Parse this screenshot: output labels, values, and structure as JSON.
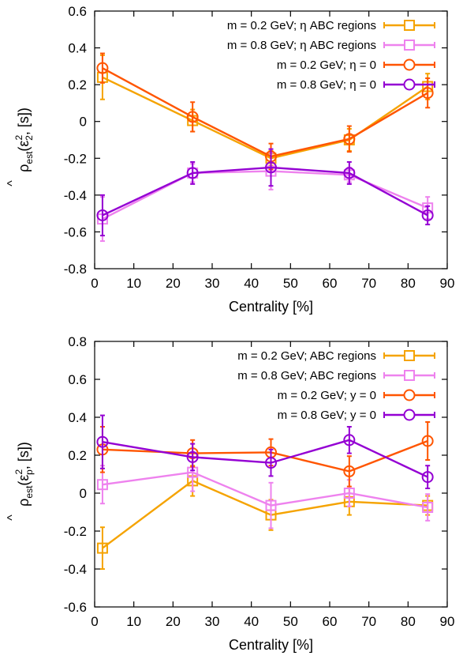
{
  "chart_data": [
    {
      "type": "line",
      "ylabel": "ρ̂_est(ε₂², [s])",
      "ylabel_parts": {
        "hat": "^",
        "main": "ρ",
        "sub": "est",
        "eps": "(ε",
        "sup": "2",
        "sub2": "2",
        "tail": ", [s])"
      },
      "xlabel": "Centrality [%]",
      "xlim": [
        0,
        90
      ],
      "ylim": [
        -0.8,
        0.6
      ],
      "xticks": [
        0,
        10,
        20,
        30,
        40,
        50,
        60,
        70,
        80,
        90
      ],
      "yticks": [
        -0.8,
        -0.6,
        -0.4,
        -0.2,
        0,
        0.2,
        0.4,
        0.6
      ],
      "ytick_labels": [
        "-0.8",
        "-0.6",
        "-0.4",
        "-0.2",
        "0",
        "0.2",
        "0.4",
        "0.6"
      ],
      "legend_position": "top-right",
      "grid": false,
      "x": [
        2,
        25,
        45,
        65,
        85
      ],
      "series": [
        {
          "name": "m = 0.2 GeV; η ABC regions",
          "color": "#f5a300",
          "marker": "square",
          "values": [
            0.24,
            0.005,
            -0.2,
            -0.1,
            0.19
          ],
          "errors": [
            0.12,
            0.06,
            0.04,
            0.06,
            0.07
          ]
        },
        {
          "name": "m = 0.8 GeV; η ABC regions",
          "color": "#ee82ee",
          "marker": "square",
          "values": [
            -0.53,
            -0.28,
            -0.27,
            -0.29,
            -0.47
          ],
          "errors": [
            0.12,
            0.05,
            0.1,
            0.04,
            0.06
          ]
        },
        {
          "name": "m = 0.2 GeV; η = 0",
          "color": "#ff5500",
          "marker": "circle",
          "values": [
            0.29,
            0.025,
            -0.19,
            -0.095,
            0.155
          ],
          "errors": [
            0.08,
            0.08,
            0.07,
            0.07,
            0.08
          ]
        },
        {
          "name": "m = 0.8 GeV; η = 0",
          "color": "#9400d3",
          "marker": "circle",
          "values": [
            -0.51,
            -0.28,
            -0.25,
            -0.28,
            -0.51
          ],
          "errors": [
            0.11,
            0.06,
            0.1,
            0.06,
            0.05
          ]
        }
      ]
    },
    {
      "type": "line",
      "ylabel": "ρ̂_est(ε_p², [s])",
      "ylabel_parts": {
        "hat": "^",
        "main": "ρ",
        "sub": "est",
        "eps": "(ε",
        "sup": "2",
        "sub2": "p",
        "tail": ", [s])"
      },
      "xlabel": "Centrality [%]",
      "xlim": [
        0,
        90
      ],
      "ylim": [
        -0.6,
        0.8
      ],
      "xticks": [
        0,
        10,
        20,
        30,
        40,
        50,
        60,
        70,
        80,
        90
      ],
      "yticks": [
        -0.6,
        -0.4,
        -0.2,
        0,
        0.2,
        0.4,
        0.6,
        0.8
      ],
      "ytick_labels": [
        "-0.6",
        "-0.4",
        "-0.2",
        "0",
        "0.2",
        "0.4",
        "0.6",
        "0.8"
      ],
      "legend_position": "top-right",
      "grid": false,
      "x": [
        2,
        25,
        45,
        65,
        85
      ],
      "series": [
        {
          "name": "m = 0.2 GeV; ABC regions",
          "color": "#f5a300",
          "marker": "square",
          "values": [
            -0.29,
            0.065,
            -0.115,
            -0.045,
            -0.065
          ],
          "errors": [
            0.11,
            0.08,
            0.08,
            0.07,
            0.05
          ]
        },
        {
          "name": "m = 0.8 GeV; ABC regions",
          "color": "#ee82ee",
          "marker": "square",
          "values": [
            0.045,
            0.11,
            -0.065,
            0.0,
            -0.075
          ],
          "errors": [
            0.1,
            0.1,
            0.12,
            0.07,
            0.07
          ]
        },
        {
          "name": "m = 0.2 GeV; y = 0",
          "color": "#ff5500",
          "marker": "circle",
          "values": [
            0.23,
            0.21,
            0.215,
            0.115,
            0.275
          ],
          "errors": [
            0.12,
            0.07,
            0.07,
            0.08,
            0.1
          ]
        },
        {
          "name": "m = 0.8 GeV; y = 0",
          "color": "#9400d3",
          "marker": "circle",
          "values": [
            0.27,
            0.19,
            0.16,
            0.28,
            0.085
          ],
          "errors": [
            0.14,
            0.07,
            0.07,
            0.07,
            0.06
          ]
        }
      ]
    }
  ]
}
